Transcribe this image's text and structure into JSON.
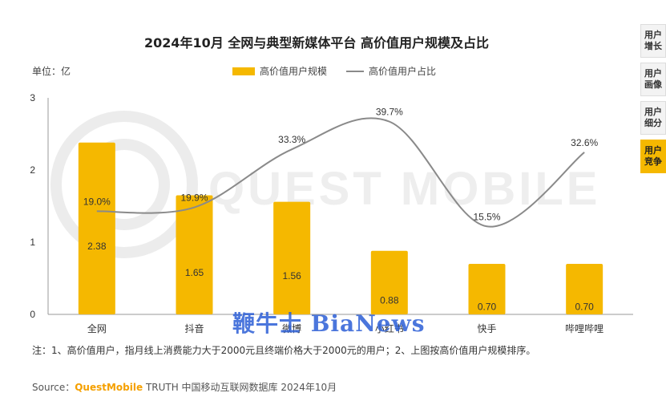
{
  "title": "2024年10月 全网与典型新媒体平台 高价值用户规模及占比",
  "unit_label": "单位：亿",
  "legend": {
    "bar": "高价值用户规模",
    "line": "高价值用户占比"
  },
  "watermark_text": "QUEST MOBILE",
  "overlay_watermark": "鞭牛士 BiaNews",
  "note": "注：1、高价值用户，指月线上消费能力大于2000元且终端价格大于2000元的用户；2、上图按高价值用户规模排序。",
  "source": {
    "prefix": "Source：",
    "brand": "QuestMobile",
    "rest": " TRUTH 中国移动互联网数据库 2024年10月"
  },
  "side_tabs": [
    {
      "label": "用户增长",
      "active": false
    },
    {
      "label": "用户画像",
      "active": false
    },
    {
      "label": "用户细分",
      "active": false
    },
    {
      "label": "用户竞争",
      "active": true
    }
  ],
  "colors": {
    "bar": "#f5b800",
    "line": "#8a8a8a",
    "accent": "#f5a000"
  },
  "chart_data": {
    "type": "bar",
    "categories": [
      "全网",
      "抖音",
      "微博",
      "小红书",
      "快手",
      "哔哩哔哩"
    ],
    "ylim": [
      0,
      3
    ],
    "yticks": [
      0,
      1,
      2,
      3
    ],
    "series": [
      {
        "name": "高价值用户规模",
        "type": "bar",
        "values": [
          2.38,
          1.65,
          1.56,
          0.88,
          0.7,
          0.7
        ],
        "labels": [
          "2.38",
          "1.65",
          "1.56",
          "0.88",
          "0.70",
          "0.70"
        ]
      },
      {
        "name": "高价值用户占比",
        "type": "line",
        "values": [
          19.0,
          19.9,
          33.3,
          39.7,
          15.5,
          32.6
        ],
        "labels": [
          "19.0%",
          "19.9%",
          "33.3%",
          "39.7%",
          "15.5%",
          "32.6%"
        ]
      }
    ]
  }
}
